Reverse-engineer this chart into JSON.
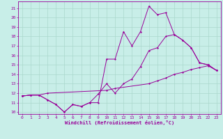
{
  "xlabel": "Windchill (Refroidissement éolien,°C)",
  "bg_color": "#c8eee8",
  "grid_color": "#aad8cc",
  "line_color": "#990099",
  "xlim": [
    -0.5,
    23.5
  ],
  "ylim": [
    9.8,
    21.7
  ],
  "xticks": [
    0,
    1,
    2,
    3,
    4,
    5,
    6,
    7,
    8,
    9,
    10,
    11,
    12,
    13,
    14,
    15,
    16,
    17,
    18,
    19,
    20,
    21,
    22,
    23
  ],
  "yticks": [
    10,
    11,
    12,
    13,
    14,
    15,
    16,
    17,
    18,
    19,
    20,
    21
  ],
  "s1_x": [
    0,
    1,
    2,
    3,
    4,
    5,
    6,
    7,
    8,
    9,
    10,
    11,
    12,
    13,
    14,
    15,
    16,
    17,
    18,
    19,
    20,
    21,
    22,
    23
  ],
  "s1_y": [
    11.7,
    11.8,
    11.8,
    11.3,
    10.8,
    10.0,
    10.8,
    10.6,
    11.0,
    11.0,
    15.6,
    15.6,
    18.5,
    17.0,
    18.5,
    21.2,
    20.3,
    20.5,
    18.2,
    17.6,
    16.8,
    15.2,
    15.0,
    14.4
  ],
  "s2_x": [
    0,
    1,
    2,
    3,
    4,
    5,
    6,
    7,
    8,
    9,
    10,
    11,
    12,
    13,
    14,
    15,
    16,
    17,
    18,
    19,
    20,
    21,
    22,
    23
  ],
  "s2_y": [
    11.7,
    11.8,
    11.8,
    11.3,
    10.8,
    10.0,
    10.8,
    10.6,
    11.0,
    11.9,
    13.0,
    12.0,
    13.0,
    13.5,
    14.8,
    16.5,
    16.8,
    18.0,
    18.2,
    17.6,
    16.8,
    15.2,
    15.0,
    14.4
  ],
  "s3_x": [
    0,
    1,
    2,
    3,
    10,
    11,
    15,
    16,
    17,
    18,
    19,
    20,
    21,
    22,
    23
  ],
  "s3_y": [
    11.7,
    11.8,
    11.8,
    12.0,
    12.3,
    12.5,
    13.0,
    13.3,
    13.6,
    14.0,
    14.2,
    14.5,
    14.7,
    14.9,
    14.4
  ]
}
